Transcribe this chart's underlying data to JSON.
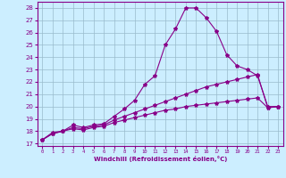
{
  "xlabel": "Windchill (Refroidissement éolien,°C)",
  "background_color": "#cceeff",
  "line_color": "#880088",
  "grid_color": "#99bbcc",
  "xlim": [
    -0.5,
    23.5
  ],
  "ylim": [
    16.8,
    28.5
  ],
  "xticks": [
    0,
    1,
    2,
    3,
    4,
    5,
    6,
    7,
    8,
    9,
    10,
    11,
    12,
    13,
    14,
    15,
    16,
    17,
    18,
    19,
    20,
    21,
    22,
    23
  ],
  "yticks": [
    17,
    18,
    19,
    20,
    21,
    22,
    23,
    24,
    25,
    26,
    27,
    28
  ],
  "line1_x": [
    0,
    1,
    2,
    3,
    4,
    5,
    6,
    7,
    8,
    9,
    10,
    11,
    12,
    13,
    14,
    15,
    16,
    17,
    18,
    19,
    20,
    21,
    22,
    23
  ],
  "line1_y": [
    17.3,
    17.9,
    18.0,
    18.5,
    18.3,
    18.5,
    18.6,
    19.2,
    19.8,
    20.5,
    21.8,
    22.5,
    25.0,
    26.3,
    28.0,
    28.0,
    27.2,
    26.1,
    24.2,
    23.3,
    23.0,
    22.5,
    20.0,
    20.0
  ],
  "line2_x": [
    0,
    1,
    2,
    3,
    4,
    5,
    6,
    7,
    8,
    9,
    10,
    11,
    12,
    13,
    14,
    15,
    16,
    17,
    18,
    19,
    20,
    21,
    22,
    23
  ],
  "line2_y": [
    17.3,
    17.8,
    18.0,
    18.3,
    18.2,
    18.4,
    18.5,
    18.9,
    19.2,
    19.5,
    19.8,
    20.1,
    20.4,
    20.7,
    21.0,
    21.3,
    21.6,
    21.8,
    22.0,
    22.2,
    22.4,
    22.6,
    19.9,
    20.0
  ],
  "line3_x": [
    0,
    1,
    2,
    3,
    4,
    5,
    6,
    7,
    8,
    9,
    10,
    11,
    12,
    13,
    14,
    15,
    16,
    17,
    18,
    19,
    20,
    21,
    22,
    23
  ],
  "line3_y": [
    17.3,
    17.8,
    18.0,
    18.2,
    18.1,
    18.3,
    18.4,
    18.7,
    18.9,
    19.1,
    19.3,
    19.5,
    19.7,
    19.8,
    20.0,
    20.1,
    20.2,
    20.3,
    20.4,
    20.5,
    20.6,
    20.7,
    19.9,
    20.0
  ]
}
